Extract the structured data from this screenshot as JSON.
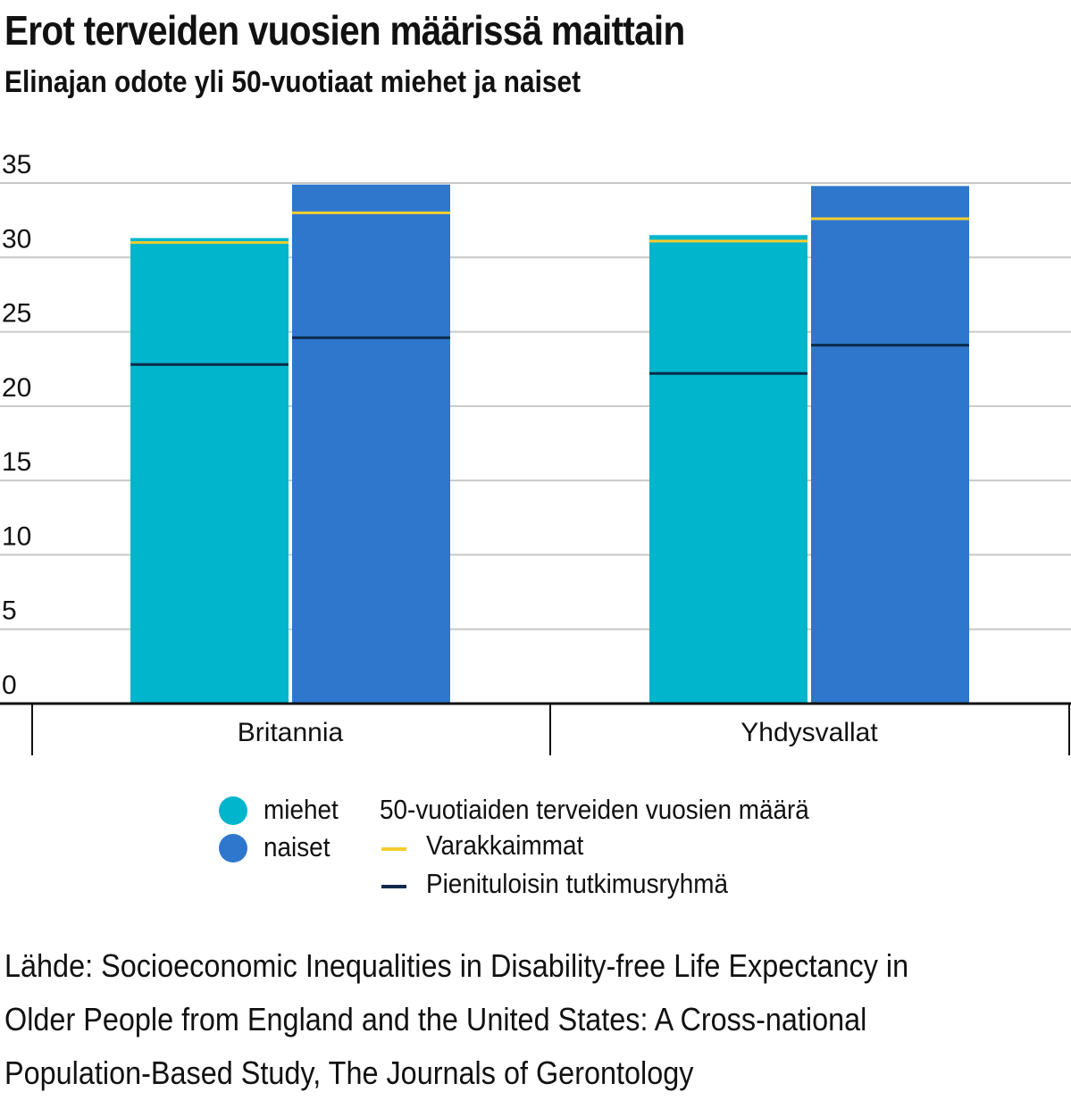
{
  "header": {
    "title": "Erot terveiden vuosien määrissä maittain",
    "subtitle": "Elinajan odote yli 50-vuotiaat miehet ja naiset"
  },
  "chart_data": {
    "type": "bar",
    "title": "Erot terveiden vuosien määrissä maittain",
    "subtitle": "Elinajan odote yli 50-vuotiaat miehet ja naiset",
    "categories": [
      "Britannia",
      "Yhdysvallat"
    ],
    "ylim": [
      0,
      35
    ],
    "yticks": [
      0,
      5,
      10,
      15,
      20,
      25,
      30,
      35
    ],
    "grid": true,
    "series": [
      {
        "name": "miehet",
        "color": "#00b5cc",
        "values": [
          31.3,
          31.5
        ],
        "markers": {
          "Varakkaimmat": [
            31.0,
            31.1
          ],
          "Pienituloisin tutkimusryhmä": [
            22.8,
            22.2
          ]
        }
      },
      {
        "name": "naiset",
        "color": "#2e77cc",
        "values": [
          34.9,
          34.8
        ],
        "markers": {
          "Varakkaimmat": [
            33.0,
            32.6
          ],
          "Pienituloisin tutkimusryhmä": [
            24.6,
            24.1
          ]
        }
      }
    ],
    "marker_colors": {
      "Varakkaimmat": "#f5cc2e",
      "Pienituloisin tutkimusryhmä": "#0d2a4a"
    },
    "legend_position": "bottom"
  },
  "legend": {
    "series": [
      {
        "label": "miehet",
        "color": "#00b5cc"
      },
      {
        "label": "naiset",
        "color": "#2e77cc"
      }
    ],
    "markers_title": "50-vuotiaiden terveiden vuosien määrä",
    "markers": [
      {
        "label": "Varakkaimmat",
        "color": "#f5cc2e"
      },
      {
        "label": "Pienituloisin tutkimusryhmä",
        "color": "#0d2a4a"
      }
    ]
  },
  "source": {
    "lines": [
      "Lähde: Socioeconomic Inequalities in Disability-free Life Expectancy in",
      "Older People from England and the United States: A Cross-national",
      "Population-Based Study, The Journals of Gerontology"
    ]
  }
}
